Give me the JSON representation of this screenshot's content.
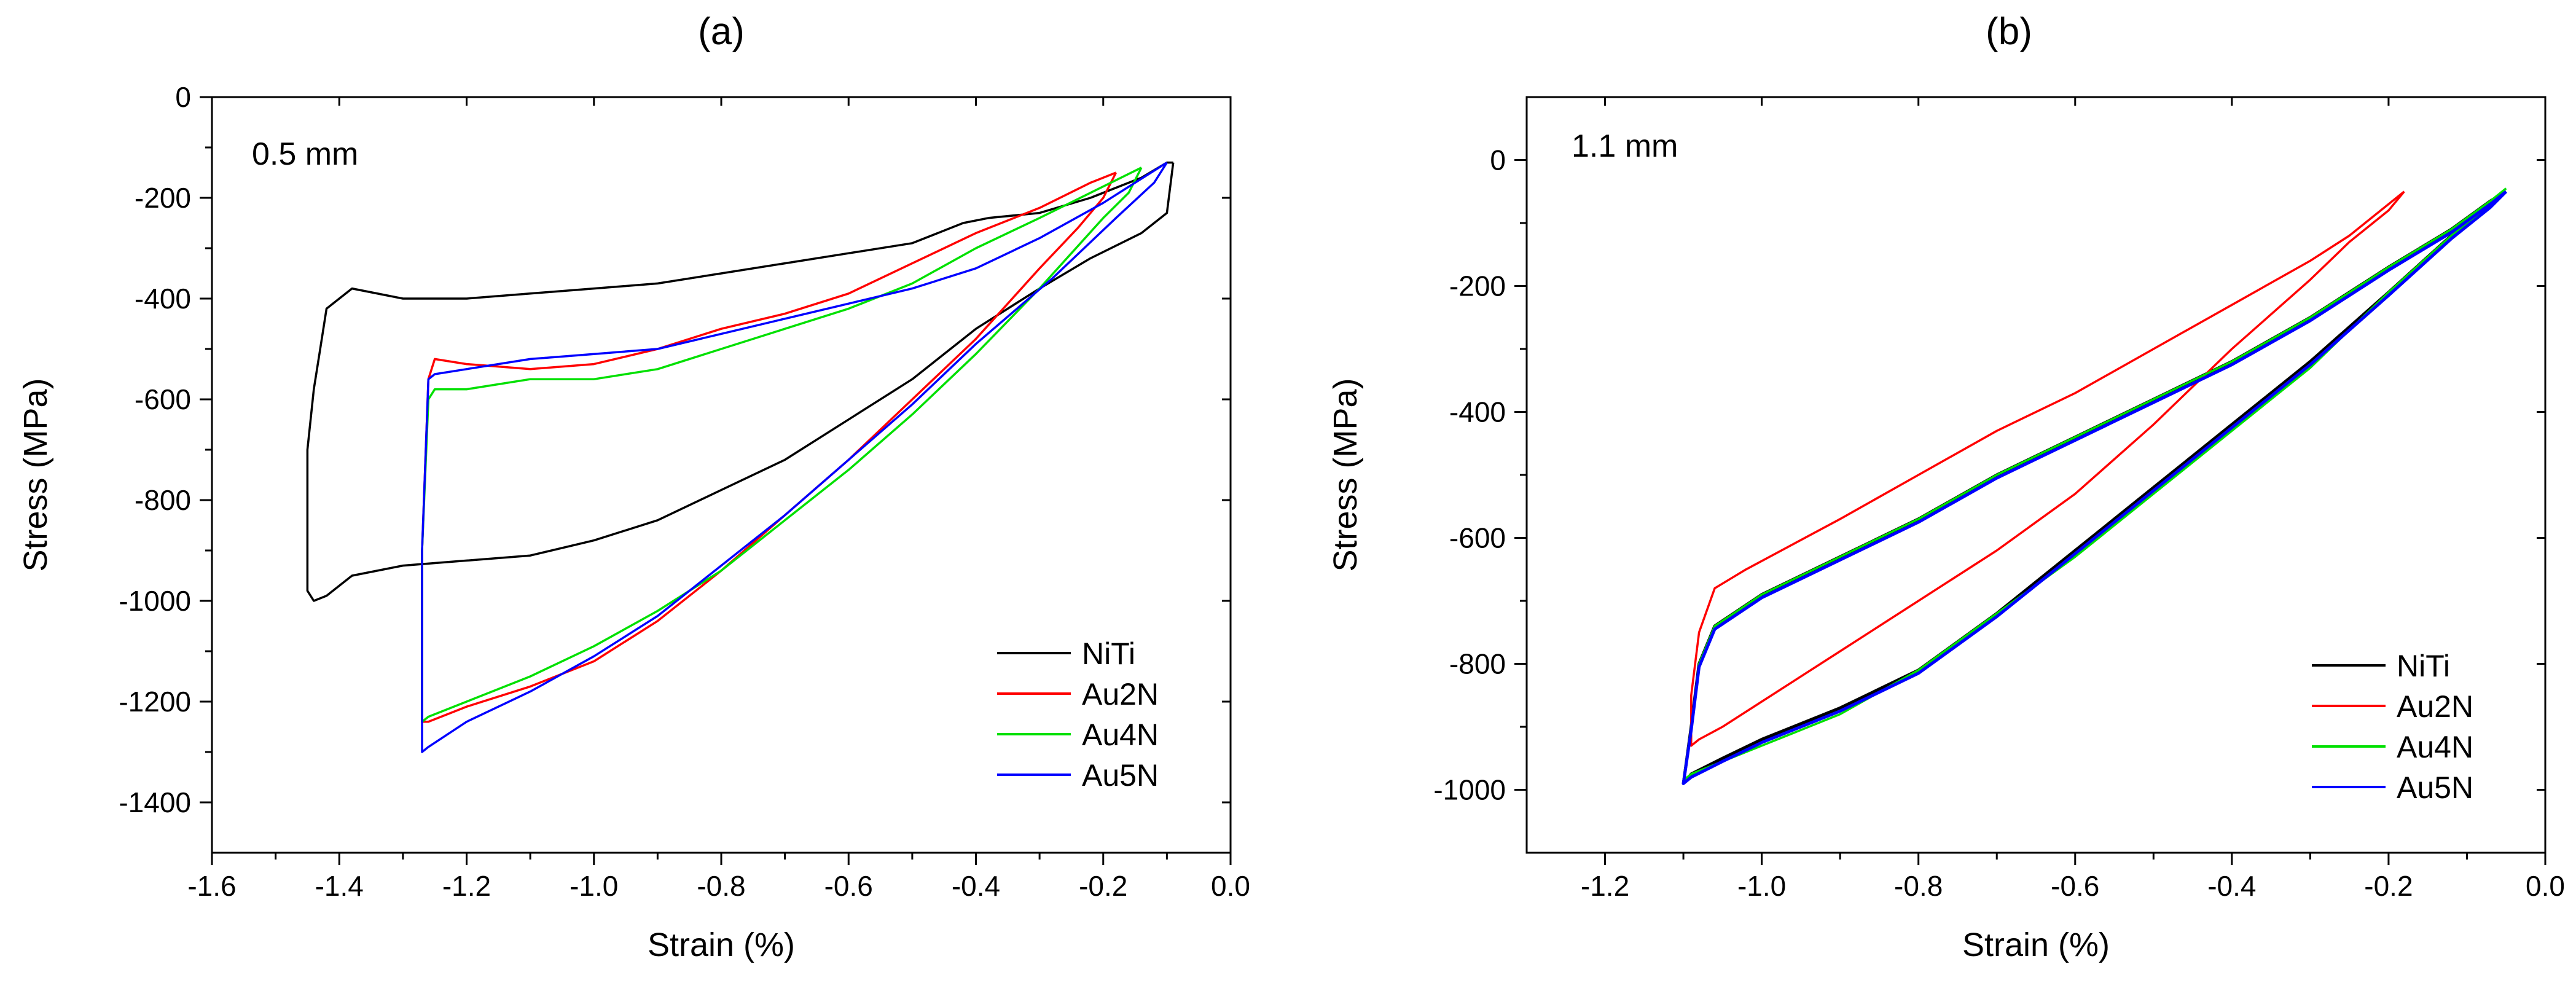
{
  "chart_data": [
    {
      "type": "line",
      "panel": "(a)",
      "annotation": "0.5 mm",
      "xlabel": "Strain (%)",
      "ylabel": "Stress (MPa)",
      "xlim": [
        -1.6,
        0.0
      ],
      "ylim": [
        -1500,
        0
      ],
      "xticks": [
        -1.6,
        -1.4,
        -1.2,
        -1.0,
        -0.8,
        -0.6,
        -0.4,
        -0.2,
        0.0
      ],
      "xtick_labels": [
        "-1.6",
        "-1.4",
        "-1.2",
        "-1.0",
        "-0.8",
        "-0.6",
        "-0.4",
        "-0.2",
        "0.0"
      ],
      "yticks": [
        0,
        -200,
        -400,
        -600,
        -800,
        -1000,
        -1200,
        -1400
      ],
      "ytick_labels": [
        "0",
        "-200",
        "-400",
        "-600",
        "-800",
        "-1000",
        "-1200",
        "-1400"
      ],
      "legend_position": "bottom-right",
      "series": [
        {
          "name": "NiTi",
          "color": "#000000",
          "x": [
            -0.09,
            -0.1,
            -0.14,
            -0.22,
            -0.3,
            -0.4,
            -0.5,
            -0.6,
            -0.7,
            -0.8,
            -0.9,
            -1.0,
            -1.1,
            -1.2,
            -1.3,
            -1.38,
            -1.42,
            -1.44,
            -1.45,
            -1.45,
            -1.44,
            -1.43,
            -1.42,
            -1.38,
            -1.3,
            -1.2,
            -1.1,
            -1.0,
            -0.9,
            -0.8,
            -0.7,
            -0.6,
            -0.5,
            -0.42,
            -0.38,
            -0.3,
            -0.22,
            -0.14,
            -0.1,
            -0.09
          ],
          "y": [
            -130,
            -230,
            -270,
            -320,
            -380,
            -460,
            -560,
            -640,
            -720,
            -780,
            -840,
            -880,
            -910,
            -920,
            -930,
            -950,
            -990,
            -1000,
            -980,
            -700,
            -580,
            -500,
            -420,
            -380,
            -400,
            -400,
            -390,
            -380,
            -370,
            -350,
            -330,
            -310,
            -290,
            -250,
            -240,
            -230,
            -200,
            -160,
            -130,
            -130
          ]
        },
        {
          "name": "Au2N",
          "color": "#ff0000",
          "x": [
            -0.18,
            -0.2,
            -0.24,
            -0.3,
            -0.4,
            -0.5,
            -0.6,
            -0.7,
            -0.8,
            -0.9,
            -1.0,
            -1.1,
            -1.2,
            -1.26,
            -1.27,
            -1.27,
            -1.26,
            -1.25,
            -1.2,
            -1.1,
            -1.0,
            -0.9,
            -0.8,
            -0.7,
            -0.6,
            -0.5,
            -0.4,
            -0.3,
            -0.22,
            -0.18
          ],
          "y": [
            -150,
            -200,
            -260,
            -340,
            -480,
            -600,
            -720,
            -830,
            -940,
            -1040,
            -1120,
            -1170,
            -1210,
            -1240,
            -1240,
            -900,
            -560,
            -520,
            -530,
            -540,
            -530,
            -500,
            -460,
            -430,
            -390,
            -330,
            -270,
            -220,
            -170,
            -150
          ]
        },
        {
          "name": "Au4N",
          "color": "#00e000",
          "x": [
            -0.14,
            -0.16,
            -0.2,
            -0.3,
            -0.4,
            -0.5,
            -0.6,
            -0.7,
            -0.8,
            -0.9,
            -1.0,
            -1.1,
            -1.2,
            -1.26,
            -1.27,
            -1.27,
            -1.26,
            -1.25,
            -1.2,
            -1.1,
            -1.0,
            -0.9,
            -0.8,
            -0.7,
            -0.6,
            -0.5,
            -0.4,
            -0.3,
            -0.22,
            -0.14
          ],
          "y": [
            -140,
            -190,
            -240,
            -380,
            -510,
            -630,
            -740,
            -840,
            -940,
            -1020,
            -1090,
            -1150,
            -1200,
            -1230,
            -1240,
            -900,
            -600,
            -580,
            -580,
            -560,
            -560,
            -540,
            -500,
            -460,
            -420,
            -370,
            -300,
            -240,
            -190,
            -140
          ]
        },
        {
          "name": "Au5N",
          "color": "#0000ff",
          "x": [
            -0.1,
            -0.12,
            -0.18,
            -0.28,
            -0.4,
            -0.5,
            -0.6,
            -0.7,
            -0.8,
            -0.9,
            -1.0,
            -1.1,
            -1.2,
            -1.26,
            -1.27,
            -1.27,
            -1.26,
            -1.25,
            -1.2,
            -1.1,
            -1.0,
            -0.9,
            -0.8,
            -0.7,
            -0.6,
            -0.5,
            -0.4,
            -0.3,
            -0.2,
            -0.1
          ],
          "y": [
            -130,
            -170,
            -240,
            -360,
            -490,
            -610,
            -720,
            -830,
            -930,
            -1030,
            -1110,
            -1180,
            -1240,
            -1290,
            -1300,
            -900,
            -560,
            -550,
            -540,
            -520,
            -510,
            -500,
            -470,
            -440,
            -410,
            -380,
            -340,
            -280,
            -210,
            -130
          ]
        }
      ]
    },
    {
      "type": "line",
      "panel": "(b)",
      "annotation": "1.1 mm",
      "xlabel": "Strain (%)",
      "ylabel": "Stress (MPa)",
      "xlim": [
        -1.3,
        0.0
      ],
      "ylim": [
        -1100,
        100
      ],
      "xticks": [
        -1.2,
        -1.0,
        -0.8,
        -0.6,
        -0.4,
        -0.2,
        0.0
      ],
      "xtick_labels": [
        "-1.2",
        "-1.0",
        "-0.8",
        "-0.6",
        "-0.4",
        "-0.2",
        "0.0"
      ],
      "yticks": [
        0,
        -200,
        -400,
        -600,
        -800,
        -1000
      ],
      "ytick_labels": [
        "0",
        "-200",
        "-400",
        "-600",
        "-800",
        "-1000"
      ],
      "legend_position": "bottom-right",
      "series": [
        {
          "name": "NiTi",
          "color": "#000000",
          "x": [
            -0.05,
            -0.07,
            -0.12,
            -0.2,
            -0.3,
            -0.4,
            -0.5,
            -0.6,
            -0.7,
            -0.8,
            -0.9,
            -1.0,
            -1.05,
            -1.09,
            -1.1,
            -1.09,
            -1.08,
            -1.06,
            -1.0,
            -0.9,
            -0.8,
            -0.7,
            -0.6,
            -0.5,
            -0.4,
            -0.3,
            -0.2,
            -0.12,
            -0.07,
            -0.05
          ],
          "y": [
            -50,
            -70,
            -120,
            -210,
            -320,
            -420,
            -520,
            -620,
            -720,
            -810,
            -870,
            -920,
            -950,
            -975,
            -990,
            -900,
            -800,
            -740,
            -690,
            -630,
            -570,
            -500,
            -440,
            -380,
            -320,
            -250,
            -170,
            -110,
            -65,
            -50
          ]
        },
        {
          "name": "Au2N",
          "color": "#ff0000",
          "x": [
            -0.18,
            -0.2,
            -0.25,
            -0.3,
            -0.4,
            -0.5,
            -0.6,
            -0.7,
            -0.8,
            -0.9,
            -1.0,
            -1.05,
            -1.08,
            -1.09,
            -1.09,
            -1.08,
            -1.06,
            -1.02,
            -0.9,
            -0.8,
            -0.7,
            -0.6,
            -0.5,
            -0.4,
            -0.3,
            -0.25,
            -0.2,
            -0.18
          ],
          "y": [
            -50,
            -80,
            -130,
            -190,
            -300,
            -420,
            -530,
            -620,
            -700,
            -780,
            -860,
            -900,
            -920,
            -930,
            -850,
            -750,
            -680,
            -650,
            -570,
            -500,
            -430,
            -370,
            -300,
            -230,
            -160,
            -120,
            -70,
            -50
          ]
        },
        {
          "name": "Au4N",
          "color": "#00e000",
          "x": [
            -0.05,
            -0.07,
            -0.12,
            -0.2,
            -0.3,
            -0.4,
            -0.5,
            -0.6,
            -0.7,
            -0.8,
            -0.9,
            -1.0,
            -1.05,
            -1.09,
            -1.1,
            -1.09,
            -1.08,
            -1.06,
            -1.0,
            -0.9,
            -0.8,
            -0.7,
            -0.6,
            -0.5,
            -0.4,
            -0.3,
            -0.2,
            -0.12,
            -0.07,
            -0.05
          ],
          "y": [
            -45,
            -70,
            -120,
            -210,
            -330,
            -430,
            -530,
            -630,
            -720,
            -810,
            -880,
            -930,
            -955,
            -975,
            -985,
            -900,
            -800,
            -740,
            -690,
            -630,
            -570,
            -500,
            -440,
            -380,
            -320,
            -250,
            -170,
            -110,
            -65,
            -45
          ]
        },
        {
          "name": "Au5N",
          "color": "#0000ff",
          "x": [
            -0.05,
            -0.07,
            -0.12,
            -0.2,
            -0.3,
            -0.4,
            -0.5,
            -0.6,
            -0.7,
            -0.8,
            -0.9,
            -1.0,
            -1.05,
            -1.09,
            -1.1,
            -1.09,
            -1.08,
            -1.06,
            -1.0,
            -0.9,
            -0.8,
            -0.7,
            -0.6,
            -0.5,
            -0.4,
            -0.3,
            -0.2,
            -0.12,
            -0.07,
            -0.05
          ],
          "y": [
            -50,
            -75,
            -125,
            -215,
            -325,
            -425,
            -525,
            -625,
            -725,
            -815,
            -875,
            -925,
            -955,
            -980,
            -990,
            -905,
            -805,
            -745,
            -695,
            -635,
            -575,
            -505,
            -445,
            -385,
            -325,
            -255,
            -175,
            -115,
            -70,
            -50
          ]
        }
      ]
    }
  ]
}
